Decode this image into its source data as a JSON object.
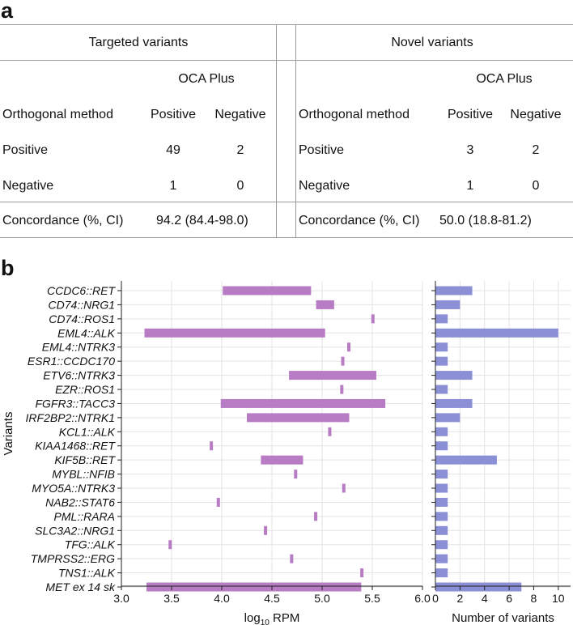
{
  "panel_a": {
    "label": "a",
    "targeted": {
      "title": "Targeted variants",
      "method_label": "OCA Plus",
      "row_header": "Orthogonal method",
      "col_pos": "Positive",
      "col_neg": "Negative",
      "rows": [
        {
          "label": "Positive",
          "pos": "49",
          "neg": "2"
        },
        {
          "label": "Negative",
          "pos": "1",
          "neg": "0"
        }
      ],
      "concordance_label": "Concordance (%, CI)",
      "concordance_value": "94.2 (84.4-98.0)"
    },
    "novel": {
      "title": "Novel variants",
      "method_label": "OCA Plus",
      "row_header": "Orthogonal method",
      "col_pos": "Positive",
      "col_neg": "Negative",
      "rows": [
        {
          "label": "Positive",
          "pos": "3",
          "neg": "2"
        },
        {
          "label": "Negative",
          "pos": "1",
          "neg": "0"
        }
      ],
      "concordance_label": "Concordance (%, CI)",
      "concordance_value": "50.0 (18.8-81.2)"
    }
  },
  "panel_b": {
    "label": "b",
    "ylabel": "Variants",
    "colors": {
      "range": "#b87cc4",
      "count": "#8b8fd6",
      "grid": "#e3e3e3",
      "axis": "#222222"
    }
  },
  "chart_data": [
    {
      "type": "bar",
      "subtype": "floating-range",
      "title": "",
      "xlabel": "log10 RPM",
      "xlabel_base": "log",
      "xlabel_sub": "10",
      "xlabel_rest": " RPM",
      "ylabel": "Variants",
      "xlim": [
        3.0,
        6.0
      ],
      "xticks": [
        3.0,
        3.5,
        4.0,
        4.5,
        5.0,
        5.5,
        6.0
      ],
      "xtick_labels": [
        "3.0",
        "3.5",
        "4.0",
        "4.5",
        "5.0",
        "5.5",
        "6.0"
      ],
      "categories": [
        "CCDC6::RET",
        "CD74::NRG1",
        "CD74::ROS1",
        "EML4::ALK",
        "EML4::NTRK3",
        "ESR1::CCDC170",
        "ETV6::NTRK3",
        "EZR::ROS1",
        "FGFR3::TACC3",
        "IRF2BP2::NTRK1",
        "KCL1::ALK",
        "KIAA1468::RET",
        "KIF5B::RET",
        "MYBL::NFIB",
        "MYO5A::NTRK3",
        "NAB2::STAT6",
        "PML::RARA",
        "SLC3A2::NRG1",
        "TFG::ALK",
        "TMPRSS2::ERG",
        "TNS1::ALK",
        "MET ex 14 sk"
      ],
      "ranges": [
        [
          4.01,
          4.89
        ],
        [
          4.94,
          5.12
        ],
        [
          5.49,
          5.52
        ],
        [
          3.23,
          5.03
        ],
        [
          5.25,
          5.28
        ],
        [
          5.19,
          5.22
        ],
        [
          4.67,
          5.54
        ],
        [
          5.18,
          5.21
        ],
        [
          3.99,
          5.63
        ],
        [
          4.25,
          5.27
        ],
        [
          5.06,
          5.09
        ],
        [
          3.88,
          3.91
        ],
        [
          4.39,
          4.81
        ],
        [
          4.72,
          4.75
        ],
        [
          5.2,
          5.23
        ],
        [
          3.95,
          3.98
        ],
        [
          4.92,
          4.95
        ],
        [
          4.42,
          4.45
        ],
        [
          3.47,
          3.5
        ],
        [
          4.68,
          4.71
        ],
        [
          5.38,
          5.41
        ],
        [
          3.25,
          5.39
        ]
      ]
    },
    {
      "type": "bar",
      "orientation": "horizontal",
      "title": "",
      "xlabel": "Number of variants",
      "ylabel": "",
      "xlim": [
        0,
        11
      ],
      "xticks": [
        0,
        2,
        4,
        6,
        8,
        10
      ],
      "xtick_labels": [
        "0",
        "2",
        "4",
        "6",
        "8",
        "10"
      ],
      "categories": [
        "CCDC6::RET",
        "CD74::NRG1",
        "CD74::ROS1",
        "EML4::ALK",
        "EML4::NTRK3",
        "ESR1::CCDC170",
        "ETV6::NTRK3",
        "EZR::ROS1",
        "FGFR3::TACC3",
        "IRF2BP2::NTRK1",
        "KCL1::ALK",
        "KIAA1468::RET",
        "KIF5B::RET",
        "MYBL::NFIB",
        "MYO5A::NTRK3",
        "NAB2::STAT6",
        "PML::RARA",
        "SLC3A2::NRG1",
        "TFG::ALK",
        "TMPRSS2::ERG",
        "TNS1::ALK",
        "MET ex 14 sk"
      ],
      "values": [
        3,
        2,
        1,
        10,
        1,
        1,
        3,
        1,
        3,
        2,
        1,
        1,
        5,
        1,
        1,
        1,
        1,
        1,
        1,
        1,
        1,
        7
      ]
    }
  ]
}
